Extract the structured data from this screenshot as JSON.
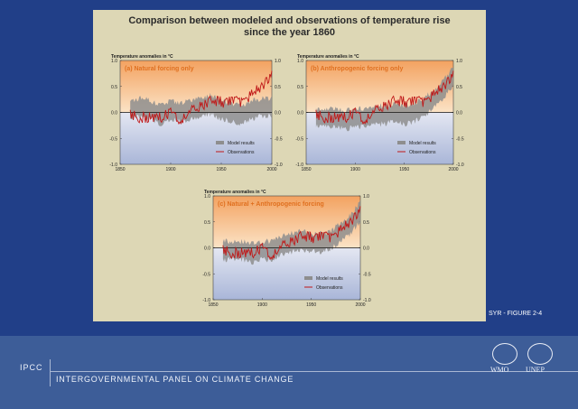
{
  "footer": {
    "ipcc": "IPCC",
    "organization": "INTERGOVERNMENTAL PANEL ON CLIMATE CHANGE",
    "logo_wmo_text": "WMO",
    "logo_unep_text": "UNEP",
    "logo_wmo_icon": "globe-wreath-icon",
    "logo_unep_icon": "unep-emblem-icon"
  },
  "figure_number": "SYR - FIGURE 2-4",
  "chart_data": [
    {
      "type": "line",
      "title": "Comparison between modeled and observations of temperature rise since the year 1860",
      "panel": "(a) Natural forcing only",
      "ylabel": "Temperature anomalies in °C",
      "xlabel": "",
      "xlim": [
        1850,
        2000
      ],
      "ylim": [
        -1.0,
        1.0
      ],
      "x_ticks": [
        "1850",
        "1900",
        "1950",
        "2000"
      ],
      "y_ticks": [
        "1.0",
        "0.5",
        "0.0",
        "-0.5",
        "-1.0"
      ],
      "legend": [
        "Model results",
        "Observations"
      ],
      "legend_position": "bottom-right",
      "series": [
        {
          "name": "Model results",
          "color": "#8e8e8e",
          "x": [
            1860,
            1870,
            1880,
            1890,
            1900,
            1910,
            1920,
            1930,
            1940,
            1950,
            1960,
            1970,
            1980,
            1990,
            2000
          ],
          "values": [
            0.05,
            0.1,
            0.05,
            -0.05,
            0.05,
            0.0,
            0.05,
            0.1,
            0.15,
            0.05,
            0.0,
            -0.05,
            0.05,
            0.1,
            0.1
          ]
        },
        {
          "name": "Observations",
          "color": "#c01818",
          "x": [
            1860,
            1870,
            1880,
            1890,
            1900,
            1910,
            1920,
            1930,
            1940,
            1950,
            1960,
            1970,
            1980,
            1990,
            2000
          ],
          "values": [
            -0.05,
            -0.1,
            -0.1,
            -0.1,
            0.0,
            -0.15,
            0.05,
            0.1,
            0.25,
            0.2,
            0.2,
            0.2,
            0.35,
            0.5,
            0.75
          ]
        }
      ]
    },
    {
      "type": "line",
      "panel": "(b) Anthropogenic forcing only",
      "ylabel": "Temperature anomalies in °C",
      "xlabel": "",
      "xlim": [
        1850,
        2000
      ],
      "ylim": [
        -1.0,
        1.0
      ],
      "x_ticks": [
        "1850",
        "1900",
        "1950",
        "2000"
      ],
      "y_ticks": [
        "1.0",
        "0.5",
        "0.0",
        "-0.5",
        "-1.0"
      ],
      "legend": [
        "Model results",
        "Observations"
      ],
      "legend_position": "bottom-right",
      "series": [
        {
          "name": "Model results",
          "color": "#8e8e8e",
          "x": [
            1860,
            1870,
            1880,
            1890,
            1900,
            1910,
            1920,
            1930,
            1940,
            1950,
            1960,
            1970,
            1980,
            1990,
            2000
          ],
          "values": [
            -0.1,
            -0.1,
            -0.1,
            -0.15,
            -0.1,
            -0.1,
            -0.05,
            -0.05,
            0.0,
            -0.05,
            0.0,
            0.1,
            0.25,
            0.45,
            0.7
          ]
        },
        {
          "name": "Observations",
          "color": "#c01818",
          "x": [
            1860,
            1870,
            1880,
            1890,
            1900,
            1910,
            1920,
            1930,
            1940,
            1950,
            1960,
            1970,
            1980,
            1990,
            2000
          ],
          "values": [
            -0.05,
            -0.1,
            -0.1,
            -0.1,
            0.0,
            -0.15,
            0.05,
            0.1,
            0.25,
            0.2,
            0.2,
            0.2,
            0.35,
            0.5,
            0.75
          ]
        }
      ]
    },
    {
      "type": "line",
      "panel": "(c) Natural + Anthropogenic forcing",
      "ylabel": "Temperature anomalies in °C",
      "xlabel": "",
      "xlim": [
        1850,
        2000
      ],
      "ylim": [
        -1.0,
        1.0
      ],
      "x_ticks": [
        "1850",
        "1900",
        "1950",
        "2000"
      ],
      "y_ticks": [
        "1.0",
        "0.5",
        "0.0",
        "-0.5",
        "-1.0"
      ],
      "legend": [
        "Model results",
        "Observations"
      ],
      "legend_position": "bottom-right",
      "series": [
        {
          "name": "Model results",
          "color": "#8e8e8e",
          "x": [
            1860,
            1870,
            1880,
            1890,
            1900,
            1910,
            1920,
            1930,
            1940,
            1950,
            1960,
            1970,
            1980,
            1990,
            2000
          ],
          "values": [
            -0.05,
            -0.05,
            -0.05,
            -0.1,
            -0.05,
            -0.05,
            0.05,
            0.1,
            0.15,
            0.1,
            0.1,
            0.15,
            0.3,
            0.45,
            0.7
          ]
        },
        {
          "name": "Observations",
          "color": "#c01818",
          "x": [
            1860,
            1870,
            1880,
            1890,
            1900,
            1910,
            1920,
            1930,
            1940,
            1950,
            1960,
            1970,
            1980,
            1990,
            2000
          ],
          "values": [
            -0.05,
            -0.1,
            -0.1,
            -0.1,
            0.0,
            -0.15,
            0.05,
            0.1,
            0.25,
            0.2,
            0.2,
            0.2,
            0.35,
            0.5,
            0.75
          ]
        }
      ]
    }
  ],
  "panel_titles": {
    "line1": "Comparison between modeled and observations of temperature rise",
    "line2": "since the year 1860"
  }
}
